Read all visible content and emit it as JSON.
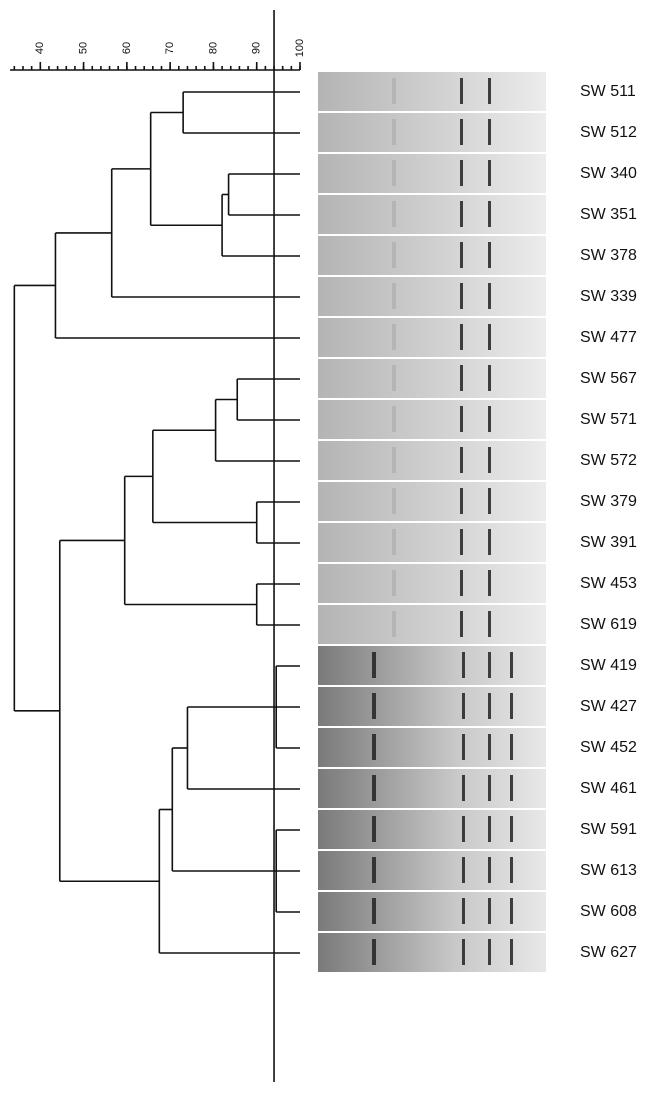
{
  "dendrogram": {
    "xlim": [
      33,
      100
    ],
    "xticks": [
      40,
      50,
      60,
      70,
      80,
      90,
      100
    ],
    "cutoff": 94,
    "leaves": [
      "SW 511",
      "SW 512",
      "SW 340",
      "SW 351",
      "SW 378",
      "SW 339",
      "SW 477",
      "SW 567",
      "SW 571",
      "SW 572",
      "SW 379",
      "SW 391",
      "SW 453",
      "SW 619",
      "SW 419",
      "SW 427",
      "SW 452",
      "SW 461",
      "SW 591",
      "SW 613",
      "SW 608",
      "SW 627"
    ],
    "merges": [
      {
        "children": [
          0,
          1
        ],
        "height": 73
      },
      {
        "children": [
          2,
          3
        ],
        "height": 83.5
      },
      {
        "children": [
          23,
          4
        ],
        "height": 82
      },
      {
        "children": [
          22,
          24
        ],
        "height": 65.5
      },
      {
        "children": [
          25,
          5
        ],
        "height": 56.5
      },
      {
        "children": [
          26,
          6
        ],
        "height": 43.5
      },
      {
        "children": [
          7,
          8
        ],
        "height": 85.5
      },
      {
        "children": [
          28,
          9
        ],
        "height": 80.5
      },
      {
        "children": [
          10,
          11
        ],
        "height": 90
      },
      {
        "children": [
          29,
          30
        ],
        "height": 66
      },
      {
        "children": [
          12,
          13
        ],
        "height": 90
      },
      {
        "children": [
          31,
          32
        ],
        "height": 59.5
      },
      {
        "children": [
          14,
          15,
          16
        ],
        "height": 94.5
      },
      {
        "children": [
          34,
          17
        ],
        "height": 74
      },
      {
        "children": [
          18,
          19,
          20
        ],
        "height": 94.5
      },
      {
        "children": [
          35,
          36
        ],
        "height": 70.5
      },
      {
        "children": [
          37,
          21
        ],
        "height": 67.5
      },
      {
        "children": [
          33,
          38
        ],
        "height": 44.5
      },
      {
        "children": [
          27,
          39
        ],
        "height": 34
      }
    ]
  }
}
